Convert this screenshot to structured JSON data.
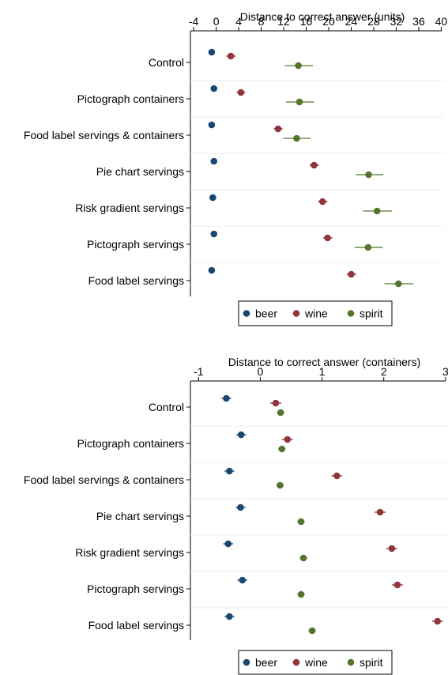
{
  "legend_labels": [
    "beer",
    "wine",
    "spirit"
  ],
  "colors": {
    "beer": "#1a476f",
    "wine": "#90353b",
    "spirit": "#55752f"
  },
  "chart_data": [
    {
      "type": "scatter",
      "xlabel": "Distance to correct answer (units)",
      "xticks": [
        -4,
        0,
        4,
        8,
        12,
        16,
        20,
        24,
        28,
        32,
        36,
        40
      ],
      "xlim": [
        -5,
        40.5
      ],
      "categories": [
        "Control",
        "Pictograph containers",
        "Food label servings & containers",
        "Pie chart servings",
        "Risk gradient servings",
        "Pictograph servings",
        "Food label servings"
      ],
      "series": [
        {
          "name": "beer",
          "values": [
            -0.8,
            -0.4,
            -0.8,
            -0.4,
            -0.6,
            -0.4,
            -0.8
          ],
          "ci_low": [
            -0.8,
            -0.4,
            -0.8,
            -0.4,
            -0.6,
            -0.4,
            -0.8
          ],
          "ci_high": [
            -0.8,
            -0.4,
            -0.8,
            -0.4,
            -0.6,
            -0.4,
            -0.8
          ]
        },
        {
          "name": "wine",
          "values": [
            2.6,
            4.4,
            11.0,
            17.4,
            18.9,
            19.8,
            24.0
          ],
          "ci_low": [
            1.8,
            3.6,
            10.2,
            16.6,
            18.1,
            19.0,
            23.2
          ],
          "ci_high": [
            3.5,
            5.2,
            11.8,
            18.3,
            19.8,
            20.7,
            24.9
          ]
        },
        {
          "name": "spirit",
          "values": [
            14.6,
            14.8,
            14.3,
            27.1,
            28.6,
            27.0,
            32.4
          ],
          "ci_low": [
            12.2,
            12.4,
            11.9,
            24.8,
            26.1,
            24.6,
            29.9
          ],
          "ci_high": [
            17.2,
            17.4,
            16.8,
            29.7,
            31.2,
            29.6,
            35.0
          ]
        }
      ],
      "legend_position": "bottom"
    },
    {
      "type": "scatter",
      "xlabel": "Distance to correct answer (containers)",
      "xticks": [
        -1,
        0,
        1,
        2,
        3
      ],
      "xlim": [
        -1.17,
        3.04
      ],
      "categories": [
        "Control",
        "Pictograph containers",
        "Food label servings & containers",
        "Pie chart servings",
        "Risk gradient servings",
        "Pictograph servings",
        "Food label servings"
      ],
      "series": [
        {
          "name": "beer",
          "values": [
            -0.55,
            -0.31,
            -0.5,
            -0.32,
            -0.52,
            -0.29,
            -0.5
          ],
          "ci_low": [
            -0.63,
            -0.39,
            -0.58,
            -0.4,
            -0.6,
            -0.37,
            -0.58
          ],
          "ci_high": [
            -0.47,
            -0.23,
            -0.42,
            -0.24,
            -0.44,
            -0.21,
            -0.42
          ]
        },
        {
          "name": "wine",
          "values": [
            0.25,
            0.44,
            1.24,
            1.94,
            2.13,
            2.22,
            2.87
          ],
          "ci_low": [
            0.16,
            0.35,
            1.15,
            1.85,
            2.04,
            2.13,
            2.78
          ],
          "ci_high": [
            0.34,
            0.53,
            1.33,
            2.03,
            2.22,
            2.31,
            2.96
          ]
        },
        {
          "name": "spirit",
          "values": [
            0.33,
            0.35,
            0.32,
            0.66,
            0.7,
            0.66,
            0.84
          ],
          "ci_low": [
            0.27,
            0.29,
            0.26,
            0.6,
            0.64,
            0.6,
            0.78
          ],
          "ci_high": [
            0.39,
            0.41,
            0.38,
            0.72,
            0.76,
            0.72,
            0.9
          ]
        }
      ],
      "legend_position": "bottom"
    }
  ]
}
